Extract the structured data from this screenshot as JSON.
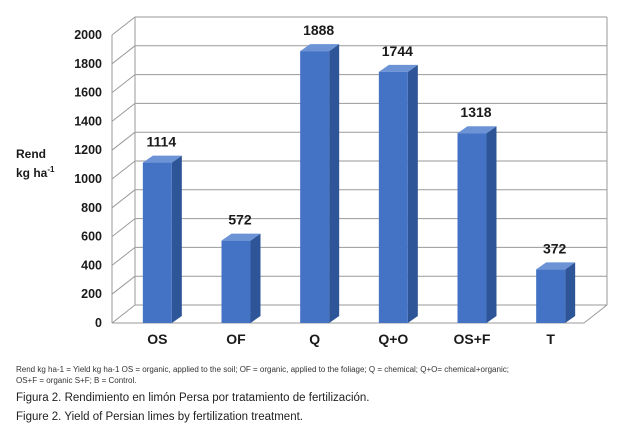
{
  "chart_data": {
    "type": "bar",
    "categories": [
      "OS",
      "OF",
      "Q",
      "Q+O",
      "OS+F",
      "T"
    ],
    "values": [
      1114,
      572,
      1888,
      1744,
      1318,
      372
    ],
    "ylabel_line1": "Rend",
    "ylabel_line2": "kg ha",
    "ylabel_superscript": "-1",
    "ylim": [
      0,
      2000
    ],
    "yticks": [
      0,
      200,
      400,
      600,
      800,
      1000,
      1200,
      1400,
      1600,
      1800,
      2000
    ],
    "grid": true,
    "legend": "none",
    "colors": {
      "bar_front": "#4472C4",
      "bar_side": "#2E5597",
      "bar_top": "#6B93D6",
      "grid": "#9a9a9a"
    }
  },
  "caption": {
    "note_line1": "Rend kg ha-1 = Yield kg ha-1 OS = organic, applied to the soil; OF = organic, applied to the foliage; Q = chemical; Q+O= chemical+organic;",
    "note_line2": "OS+F = organic S+F; B = Control.",
    "figure_es": "Figura 2. Rendimiento en limón Persa por tratamiento de fertilización.",
    "figure_en": "Figure 2. Yield of Persian limes by fertilization treatment."
  }
}
